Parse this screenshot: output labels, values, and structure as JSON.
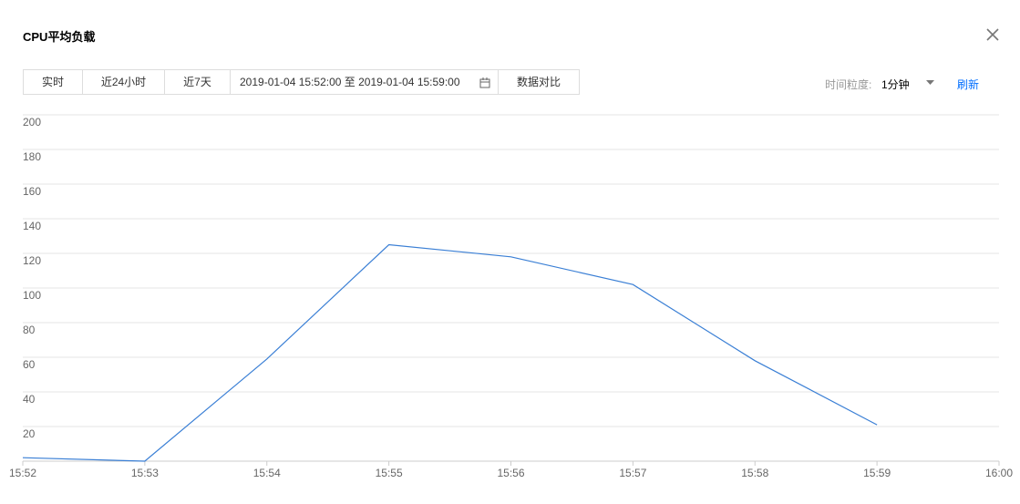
{
  "header": {
    "title": "CPU平均负载"
  },
  "toolbar": {
    "buttons": [
      "实时",
      "近24小时",
      "近7天"
    ],
    "date_range": "2019-01-04 15:52:00 至 2019-01-04 15:59:00",
    "compare": "数据对比",
    "granularity_label": "时间粒度:",
    "granularity": "1分钟",
    "refresh": "刷新"
  },
  "chart_data": {
    "type": "line",
    "categories": [
      "15:52",
      "15:53",
      "15:54",
      "15:55",
      "15:56",
      "15:57",
      "15:58",
      "15:59",
      "16:00"
    ],
    "values": [
      2,
      0,
      59,
      125,
      118,
      102,
      58,
      21,
      null
    ],
    "color": "#3a7fd5",
    "ylim": [
      0,
      200
    ],
    "yticks": [
      20,
      40,
      60,
      80,
      100,
      120,
      140,
      160,
      180,
      200
    ],
    "grid": true
  }
}
